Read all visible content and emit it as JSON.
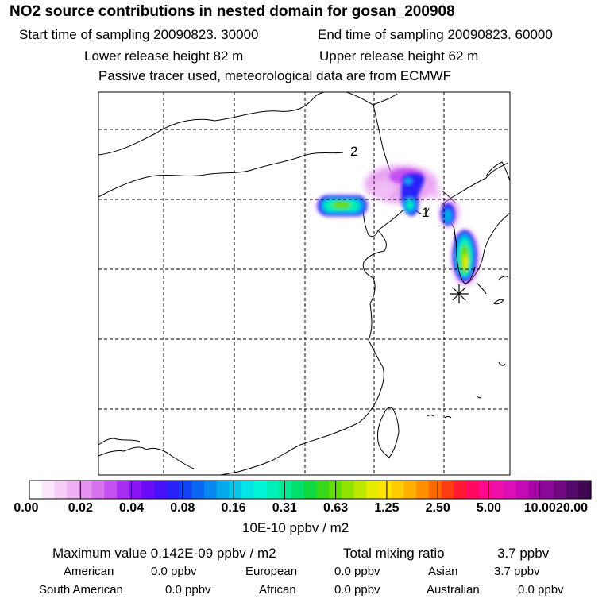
{
  "header": {
    "title": "NO2 source contributions in nested domain for gosan_200908",
    "start_time": "Start time of sampling 20090823. 30000",
    "end_time": "End time of sampling 20090823. 60000",
    "lower_release": "Lower release height   82 m",
    "upper_release": "Upper release height   62 m",
    "tracer_note": "Passive tracer used, meteorological data are from ECMWF"
  },
  "map": {
    "labels": [
      "2",
      "1"
    ],
    "receptor": "gosan",
    "grid_lines": "dashed"
  },
  "colorbar": {
    "ticks": [
      "0.00",
      "0.02",
      "0.04",
      "0.08",
      "0.16",
      "0.31",
      "0.63",
      "1.25",
      "2.50",
      "5.00",
      "10.00",
      "20.00"
    ],
    "units": "10E-10 ppbv / m2",
    "colors": [
      "#ffffff",
      "#fbe6fb",
      "#f6cdf7",
      "#efb0f4",
      "#e592f0",
      "#d772ee",
      "#c451f0",
      "#a92ef2",
      "#8a14f5",
      "#6a0cf7",
      "#4a10f8",
      "#2a22f8",
      "#1042f6",
      "#0a65f2",
      "#0887ef",
      "#06a8ec",
      "#04c7ea",
      "#03e4e6",
      "#00f5d8",
      "#00f0b8",
      "#00ea92",
      "#00e06a",
      "#10d840",
      "#38d81a",
      "#62dd00",
      "#90e400",
      "#bce800",
      "#e6ec00",
      "#ffe400",
      "#ffcc00",
      "#ffb000",
      "#ff9000",
      "#ff6a00",
      "#ff3e10",
      "#ff1a30",
      "#ff0a60",
      "#ff0a8a",
      "#f010a8",
      "#dd10b8",
      "#c30ab6",
      "#a808a8",
      "#8c0896",
      "#700880",
      "#54086a",
      "#400854"
    ]
  },
  "footer": {
    "max_label": "Maximum value  0.142E-09 ppbv / m2",
    "total_label": "Total mixing ratio",
    "total_value": "3.7 ppbv",
    "regions": [
      {
        "name": "American",
        "value": "0.0 ppbv"
      },
      {
        "name": "European",
        "value": "0.0 ppbv"
      },
      {
        "name": "Asian",
        "value": "3.7 ppbv"
      },
      {
        "name": "South American",
        "value": "0.0 ppbv"
      },
      {
        "name": "African",
        "value": "0.0 ppbv"
      },
      {
        "name": "Australian",
        "value": "0.0 ppbv"
      }
    ]
  }
}
